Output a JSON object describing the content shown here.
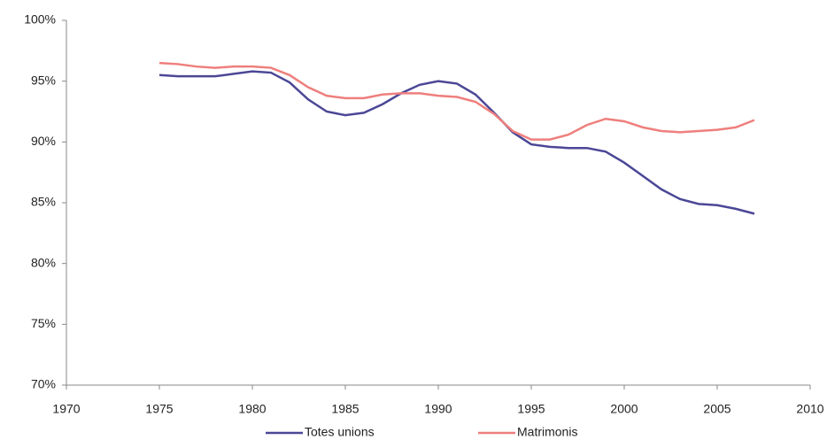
{
  "chart_data": {
    "type": "line",
    "x": [
      1975,
      1976,
      1977,
      1978,
      1979,
      1980,
      1981,
      1982,
      1983,
      1984,
      1985,
      1986,
      1987,
      1988,
      1989,
      1990,
      1991,
      1992,
      1993,
      1994,
      1995,
      1996,
      1997,
      1998,
      1999,
      2000,
      2001,
      2002,
      2003,
      2004,
      2005,
      2006,
      2007
    ],
    "series": [
      {
        "name": "Totes unions",
        "color": "#4b4796",
        "values": [
          95.5,
          95.4,
          95.4,
          95.4,
          95.6,
          95.8,
          95.7,
          94.9,
          93.5,
          92.5,
          92.2,
          92.4,
          93.1,
          94.0,
          94.7,
          95.0,
          94.8,
          93.9,
          92.4,
          90.8,
          89.8,
          89.6,
          89.5,
          89.5,
          89.2,
          88.3,
          87.2,
          86.1,
          85.3,
          84.9,
          84.8,
          84.5,
          84.1
        ]
      },
      {
        "name": "Matrimonis",
        "color": "#ee7f7d",
        "values": [
          96.5,
          96.4,
          96.2,
          96.1,
          96.2,
          96.2,
          96.1,
          95.5,
          94.5,
          93.8,
          93.6,
          93.6,
          93.9,
          94.0,
          94.0,
          93.8,
          93.7,
          93.3,
          92.3,
          90.9,
          90.2,
          90.2,
          90.6,
          91.4,
          91.9,
          91.7,
          91.2,
          90.9,
          90.8,
          90.9,
          91.0,
          91.2,
          91.8
        ]
      }
    ],
    "xlim": [
      1970,
      2010
    ],
    "xticks": [
      1970,
      1975,
      1980,
      1985,
      1990,
      1995,
      2000,
      2005,
      2010
    ],
    "ylim": [
      70,
      100
    ],
    "yticks": [
      {
        "value": 70,
        "label": "70%"
      },
      {
        "value": 75,
        "label": "75%"
      },
      {
        "value": 80,
        "label": "80%"
      },
      {
        "value": 85,
        "label": "85%"
      },
      {
        "value": 90,
        "label": "90%"
      },
      {
        "value": 95,
        "label": "95%"
      },
      {
        "value": 100,
        "label": "100%"
      }
    ],
    "grid": false,
    "legend": "bottom"
  }
}
